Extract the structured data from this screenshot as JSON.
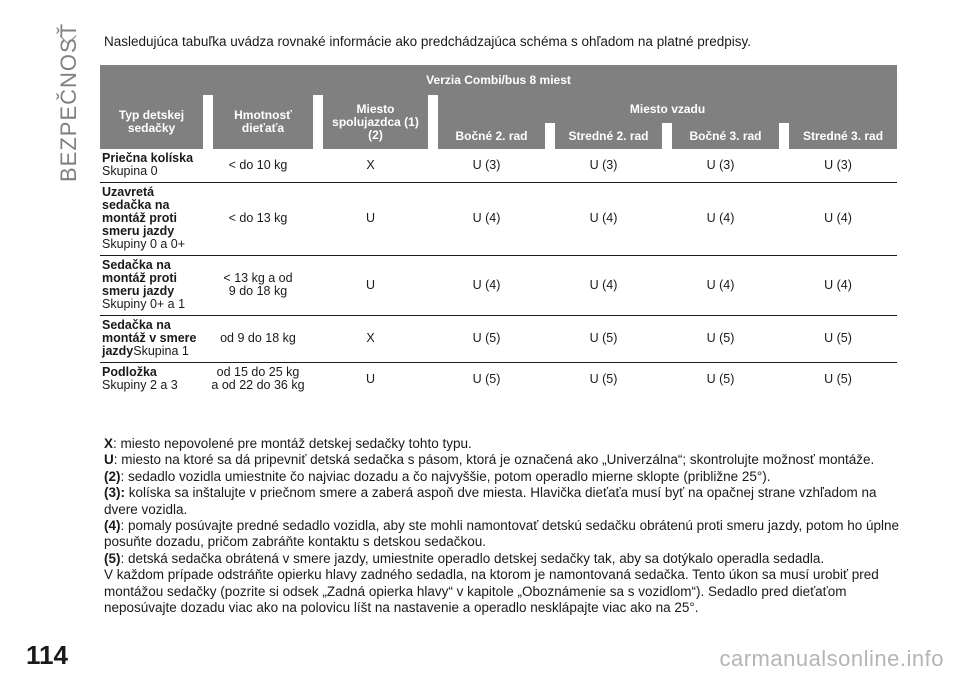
{
  "sidebar": {
    "section_label": "BEZPEČNOSŤ"
  },
  "page_number": "114",
  "watermark": "carmanualsonline.info",
  "intro": "Nasledujúca tabuľka uvádza rovnaké informácie ako predchádzajúca schéma s ohľadom na platné predpisy.",
  "table": {
    "title": "Verzia Combi/bus 8 miest",
    "col_type": "Typ detskej sedačky",
    "col_weight": "Hmotnosť dieťaťa",
    "col_passenger": "Miesto spolujazdca (1) (2)",
    "col_rear": "Miesto vzadu",
    "rear_cols": [
      "Bočné 2. rad",
      "Stredné 2. rad",
      "Bočné 3. rad",
      "Stredné 3. rad"
    ],
    "rows": [
      {
        "name": "Priečna kolíska",
        "group": "Skupina 0",
        "weight": [
          "< do 10 kg"
        ],
        "passenger": "X",
        "rear": [
          "U (3)",
          "U (3)",
          "U (3)",
          "U (3)"
        ]
      },
      {
        "name": "Uzavretá sedačka na montáž proti smeru jazdy",
        "group": "Skupiny 0 a 0+",
        "weight": [
          "< do 13 kg"
        ],
        "passenger": "U",
        "rear": [
          "U (4)",
          "U (4)",
          "U (4)",
          "U (4)"
        ]
      },
      {
        "name": "Sedačka na montáž proti smeru jazdy",
        "group": "Skupiny 0+ a 1",
        "weight": [
          "< 13 kg a od",
          "9 do 18 kg"
        ],
        "passenger": "U",
        "rear": [
          "U (4)",
          "U (4)",
          "U (4)",
          "U (4)"
        ]
      },
      {
        "name": "Sedačka na montáž v smere jazdy",
        "group": "Skupina 1",
        "weight": [
          "od 9 do 18 kg"
        ],
        "passenger": "X",
        "rear": [
          "U (5)",
          "U (5)",
          "U (5)",
          "U (5)"
        ]
      },
      {
        "name": "Podložka",
        "group": "Skupiny 2 a 3",
        "weight": [
          "od 15 do 25 kg",
          "a od 22 do 36 kg"
        ],
        "passenger": "U",
        "rear": [
          "U (5)",
          "U (5)",
          "U (5)",
          "U (5)"
        ]
      }
    ]
  },
  "notes": [
    {
      "key": "X",
      "text": ": miesto nepovolené pre montáž detskej sedačky tohto typu."
    },
    {
      "key": "U",
      "text": ": miesto na ktoré sa dá pripevniť detská sedačka s pásom, ktorá je označená ako „Univerzálna“; skontrolujte možnosť montáže."
    },
    {
      "key": "(2)",
      "text": ": sedadlo vozidla umiestnite čo najviac dozadu a čo najvyššie, potom operadlo mierne sklopte (približne 25°)."
    },
    {
      "key": "(3):",
      "text": " kolíska sa inštalujte v priečnom smere a zaberá aspoň dve miesta. Hlavička dieťaťa musí byť na opačnej strane vzhľadom na dvere vozidla."
    },
    {
      "key": "(4)",
      "text": ": pomaly posúvajte predné sedadlo vozidla, aby ste mohli namontovať detskú sedačku obrátenú proti smeru jazdy, potom ho úplne posuňte dozadu, pričom zabráňte kontaktu s detskou sedačkou."
    },
    {
      "key": "(5)",
      "text": ": detská sedačka obrátená v smere jazdy, umiestnite operadlo detskej sedačky tak, aby sa dotýkalo operadla sedadla."
    },
    {
      "key": "",
      "text": "V každom prípade odstráňte opierku hlavy zadného sedadla, na ktorom je namontovaná sedačka. Tento úkon sa musí urobiť pred montážou sedačky (pozrite si odsek „Zadná opierka hlavy“ v kapitole „Oboznámenie sa s vozidlom“). Sedadlo pred dieťaťom neposúvajte dozadu viac ako na polovicu líšt na nastavenie a operadlo nesklápajte viac ako na 25°."
    }
  ]
}
